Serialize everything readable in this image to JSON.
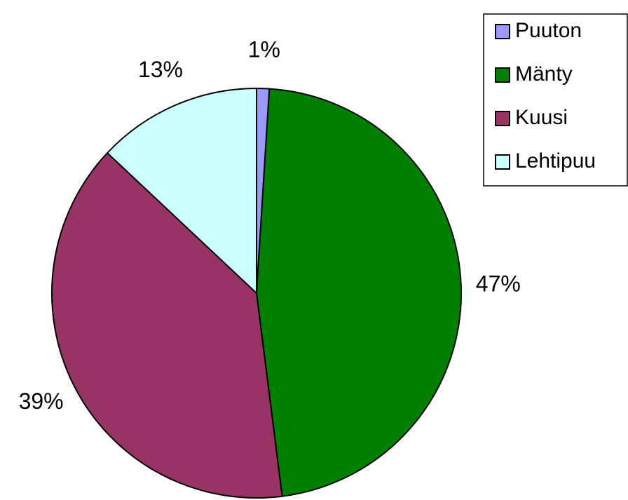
{
  "chart_data": {
    "type": "pie",
    "categories": [
      "Puuton",
      "Mänty",
      "Kuusi",
      "Lehtipuu"
    ],
    "values": [
      1,
      47,
      39,
      13
    ],
    "value_labels": [
      "1%",
      "47%",
      "39%",
      "13%"
    ],
    "colors": [
      "#9999ff",
      "#008000",
      "#993366",
      "#ccffff"
    ],
    "legend": "top-right"
  }
}
